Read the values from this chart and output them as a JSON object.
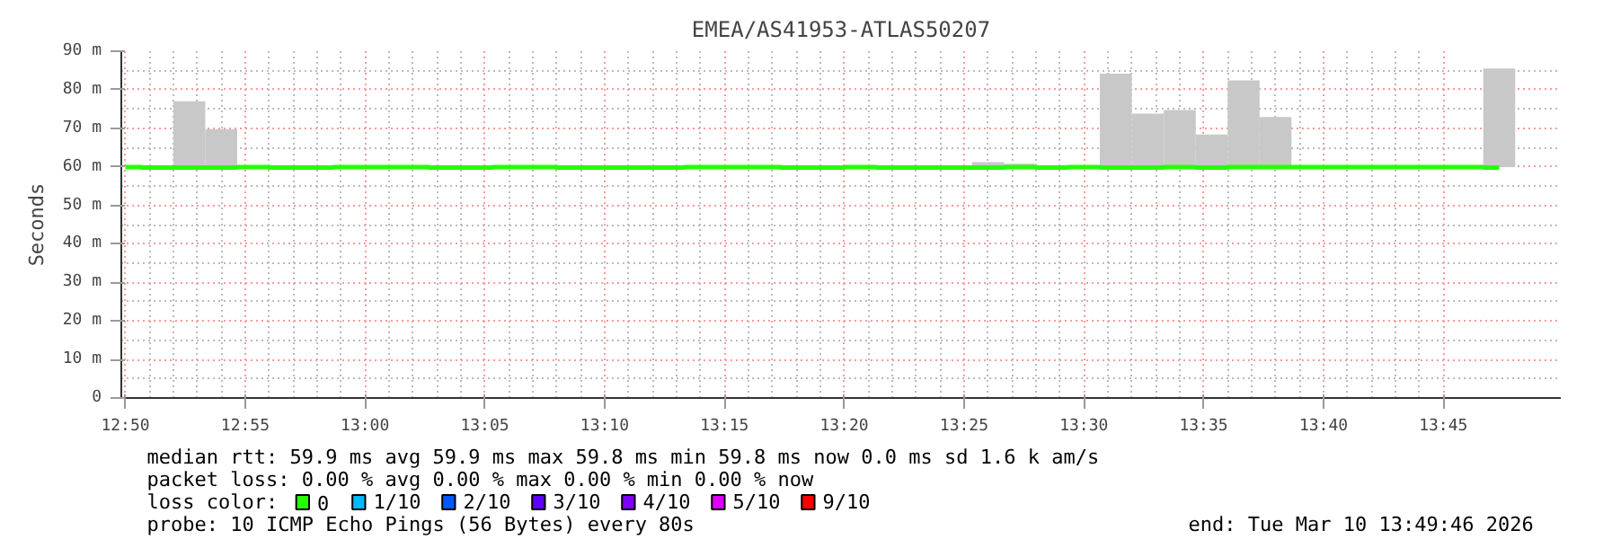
{
  "chart_data": {
    "type": "step",
    "title": "EMEA/AS41953-ATLAS50207",
    "ylabel": "Seconds",
    "legend_title": "loss color:",
    "x": [
      12.8333,
      12.8556,
      12.8778,
      12.9,
      12.9222,
      12.9444,
      12.9667,
      12.9889,
      13.0111,
      13.0333,
      13.0556,
      13.0778,
      13.1,
      13.1222,
      13.1444,
      13.1667,
      13.1889,
      13.2111,
      13.2333,
      13.2556,
      13.2778,
      13.3,
      13.3222,
      13.3444,
      13.3667,
      13.3889,
      13.4111,
      13.4333,
      13.4556,
      13.4778,
      13.5,
      13.5222,
      13.5444,
      13.5667,
      13.5889,
      13.6111,
      13.6333,
      13.6556,
      13.6778,
      13.7,
      13.7222,
      13.7444,
      13.7667,
      13.7889
    ],
    "series": [
      {
        "type": "bar",
        "color": "#c8c8c8",
        "x": [
          12.8778,
          12.9,
          13.4333,
          13.4556,
          13.5222,
          13.5444,
          13.5667,
          13.5889,
          13.6111,
          13.6333,
          13.7889
        ],
        "base": [
          59.9,
          59.9,
          59.9,
          59.9,
          59.9,
          59.9,
          59.9,
          59.9,
          59.9,
          59.9,
          59.9
        ],
        "values": [
          17.1,
          9.9,
          1.3,
          0.9,
          24.3,
          13.9,
          14.8,
          8.5,
          22.5,
          13.0,
          25.6
        ]
      },
      {
        "name": "0",
        "color": "#26ff00",
        "values": [
          59.9,
          59.8,
          59.8,
          59.8,
          59.9,
          59.8,
          59.8,
          59.9,
          59.9,
          59.9,
          59.8,
          59.8,
          59.9,
          59.9,
          59.8,
          59.8,
          59.8,
          59.8,
          59.9,
          59.9,
          59.9,
          59.8,
          59.8,
          59.9,
          59.8,
          59.8,
          59.8,
          59.8,
          59.9,
          59.8,
          59.9,
          59.8,
          59.8,
          59.9,
          59.8,
          59.9,
          59.9,
          59.9,
          59.9,
          59.9,
          59.9,
          59.9,
          59.9,
          59.8
        ]
      },
      {
        "name": "1/10",
        "color": "#00b8ff",
        "values": [
          null,
          null,
          null,
          null,
          null,
          null,
          null,
          null,
          null,
          null,
          null,
          null,
          null,
          null,
          null,
          null,
          null,
          null,
          null,
          null,
          null,
          null,
          null,
          null,
          null,
          null,
          null,
          null,
          null,
          null,
          null,
          null,
          null,
          null,
          null,
          null,
          null,
          null,
          null,
          null,
          null,
          null,
          null,
          null
        ]
      },
      {
        "name": "2/10",
        "color": "#0059ff",
        "values": [
          null,
          null,
          null,
          null,
          null,
          null,
          null,
          null,
          null,
          null,
          null,
          null,
          null,
          null,
          null,
          null,
          null,
          null,
          null,
          null,
          null,
          null,
          null,
          null,
          null,
          null,
          null,
          null,
          null,
          null,
          null,
          null,
          null,
          null,
          null,
          null,
          null,
          null,
          null,
          null,
          null,
          null,
          null,
          null
        ]
      },
      {
        "name": "3/10",
        "color": "#5e00ff",
        "values": [
          null,
          null,
          null,
          null,
          null,
          null,
          null,
          null,
          null,
          null,
          null,
          null,
          null,
          null,
          null,
          null,
          null,
          null,
          null,
          null,
          null,
          null,
          null,
          null,
          null,
          null,
          null,
          null,
          null,
          null,
          null,
          null,
          null,
          null,
          null,
          null,
          null,
          null,
          null,
          null,
          null,
          null,
          null,
          null
        ]
      },
      {
        "name": "4/10",
        "color": "#7e00ff",
        "values": [
          null,
          null,
          null,
          null,
          null,
          null,
          null,
          null,
          null,
          null,
          null,
          null,
          null,
          null,
          null,
          null,
          null,
          null,
          null,
          null,
          null,
          null,
          null,
          null,
          null,
          null,
          null,
          null,
          null,
          null,
          null,
          null,
          null,
          null,
          null,
          null,
          null,
          null,
          null,
          null,
          null,
          null,
          null,
          null
        ]
      },
      {
        "name": "5/10",
        "color": "#dd00ff",
        "values": [
          null,
          null,
          null,
          null,
          null,
          null,
          null,
          null,
          null,
          null,
          null,
          null,
          null,
          null,
          null,
          null,
          null,
          null,
          null,
          null,
          null,
          null,
          null,
          null,
          null,
          null,
          null,
          null,
          null,
          null,
          null,
          null,
          null,
          null,
          null,
          null,
          null,
          null,
          null,
          null,
          null,
          null,
          null,
          null
        ]
      },
      {
        "name": "9/10",
        "color": "#ff0000",
        "values": [
          null,
          null,
          null,
          null,
          null,
          null,
          null,
          null,
          null,
          null,
          null,
          null,
          null,
          null,
          null,
          null,
          null,
          null,
          null,
          null,
          null,
          null,
          null,
          null,
          null,
          null,
          null,
          null,
          null,
          null,
          null,
          null,
          null,
          null,
          null,
          null,
          null,
          null,
          null,
          null,
          null,
          null,
          null,
          null
        ]
      }
    ],
    "xlim": [
      12.8305,
      13.8317
    ],
    "xticks": [
      {
        "value": 12.8333,
        "label": "12:50"
      },
      {
        "value": 12.9167,
        "label": "12:55"
      },
      {
        "value": 13.0,
        "label": "13:00"
      },
      {
        "value": 13.0833,
        "label": "13:05"
      },
      {
        "value": 13.1667,
        "label": "13:10"
      },
      {
        "value": 13.25,
        "label": "13:15"
      },
      {
        "value": 13.3333,
        "label": "13:20"
      },
      {
        "value": 13.4167,
        "label": "13:25"
      },
      {
        "value": 13.5,
        "label": "13:30"
      },
      {
        "value": 13.5833,
        "label": "13:35"
      },
      {
        "value": 13.6667,
        "label": "13:40"
      },
      {
        "value": 13.75,
        "label": "13:45"
      }
    ],
    "ylim": [
      0,
      90
    ],
    "yticks": [
      0,
      {
        "value": 10,
        "label": "10 m"
      },
      {
        "value": 20,
        "label": "20 m"
      },
      {
        "value": 30,
        "label": "30 m"
      },
      {
        "value": 40,
        "label": "40 m"
      },
      {
        "value": 50,
        "label": "50 m"
      },
      {
        "value": 60,
        "label": "60 m"
      },
      {
        "value": 70,
        "label": "70 m"
      },
      {
        "value": 80,
        "label": "80 m"
      },
      {
        "value": 90,
        "label": "90 m"
      }
    ],
    "grid": true,
    "legend": "bottom",
    "annotations": [
      "median rtt:  59.9 ms avg  59.9 ms max  59.8 ms min  59.8 ms now  0.0 ms sd  1.6 k am/s",
      "packet loss: 0.00 % avg  0.00 % max  0.00 % min  0.00 % now",
      "probe:       10 ICMP Echo Pings (56 Bytes) every 80s",
      "end: Tue Mar 10 13:49:46 2026"
    ]
  }
}
